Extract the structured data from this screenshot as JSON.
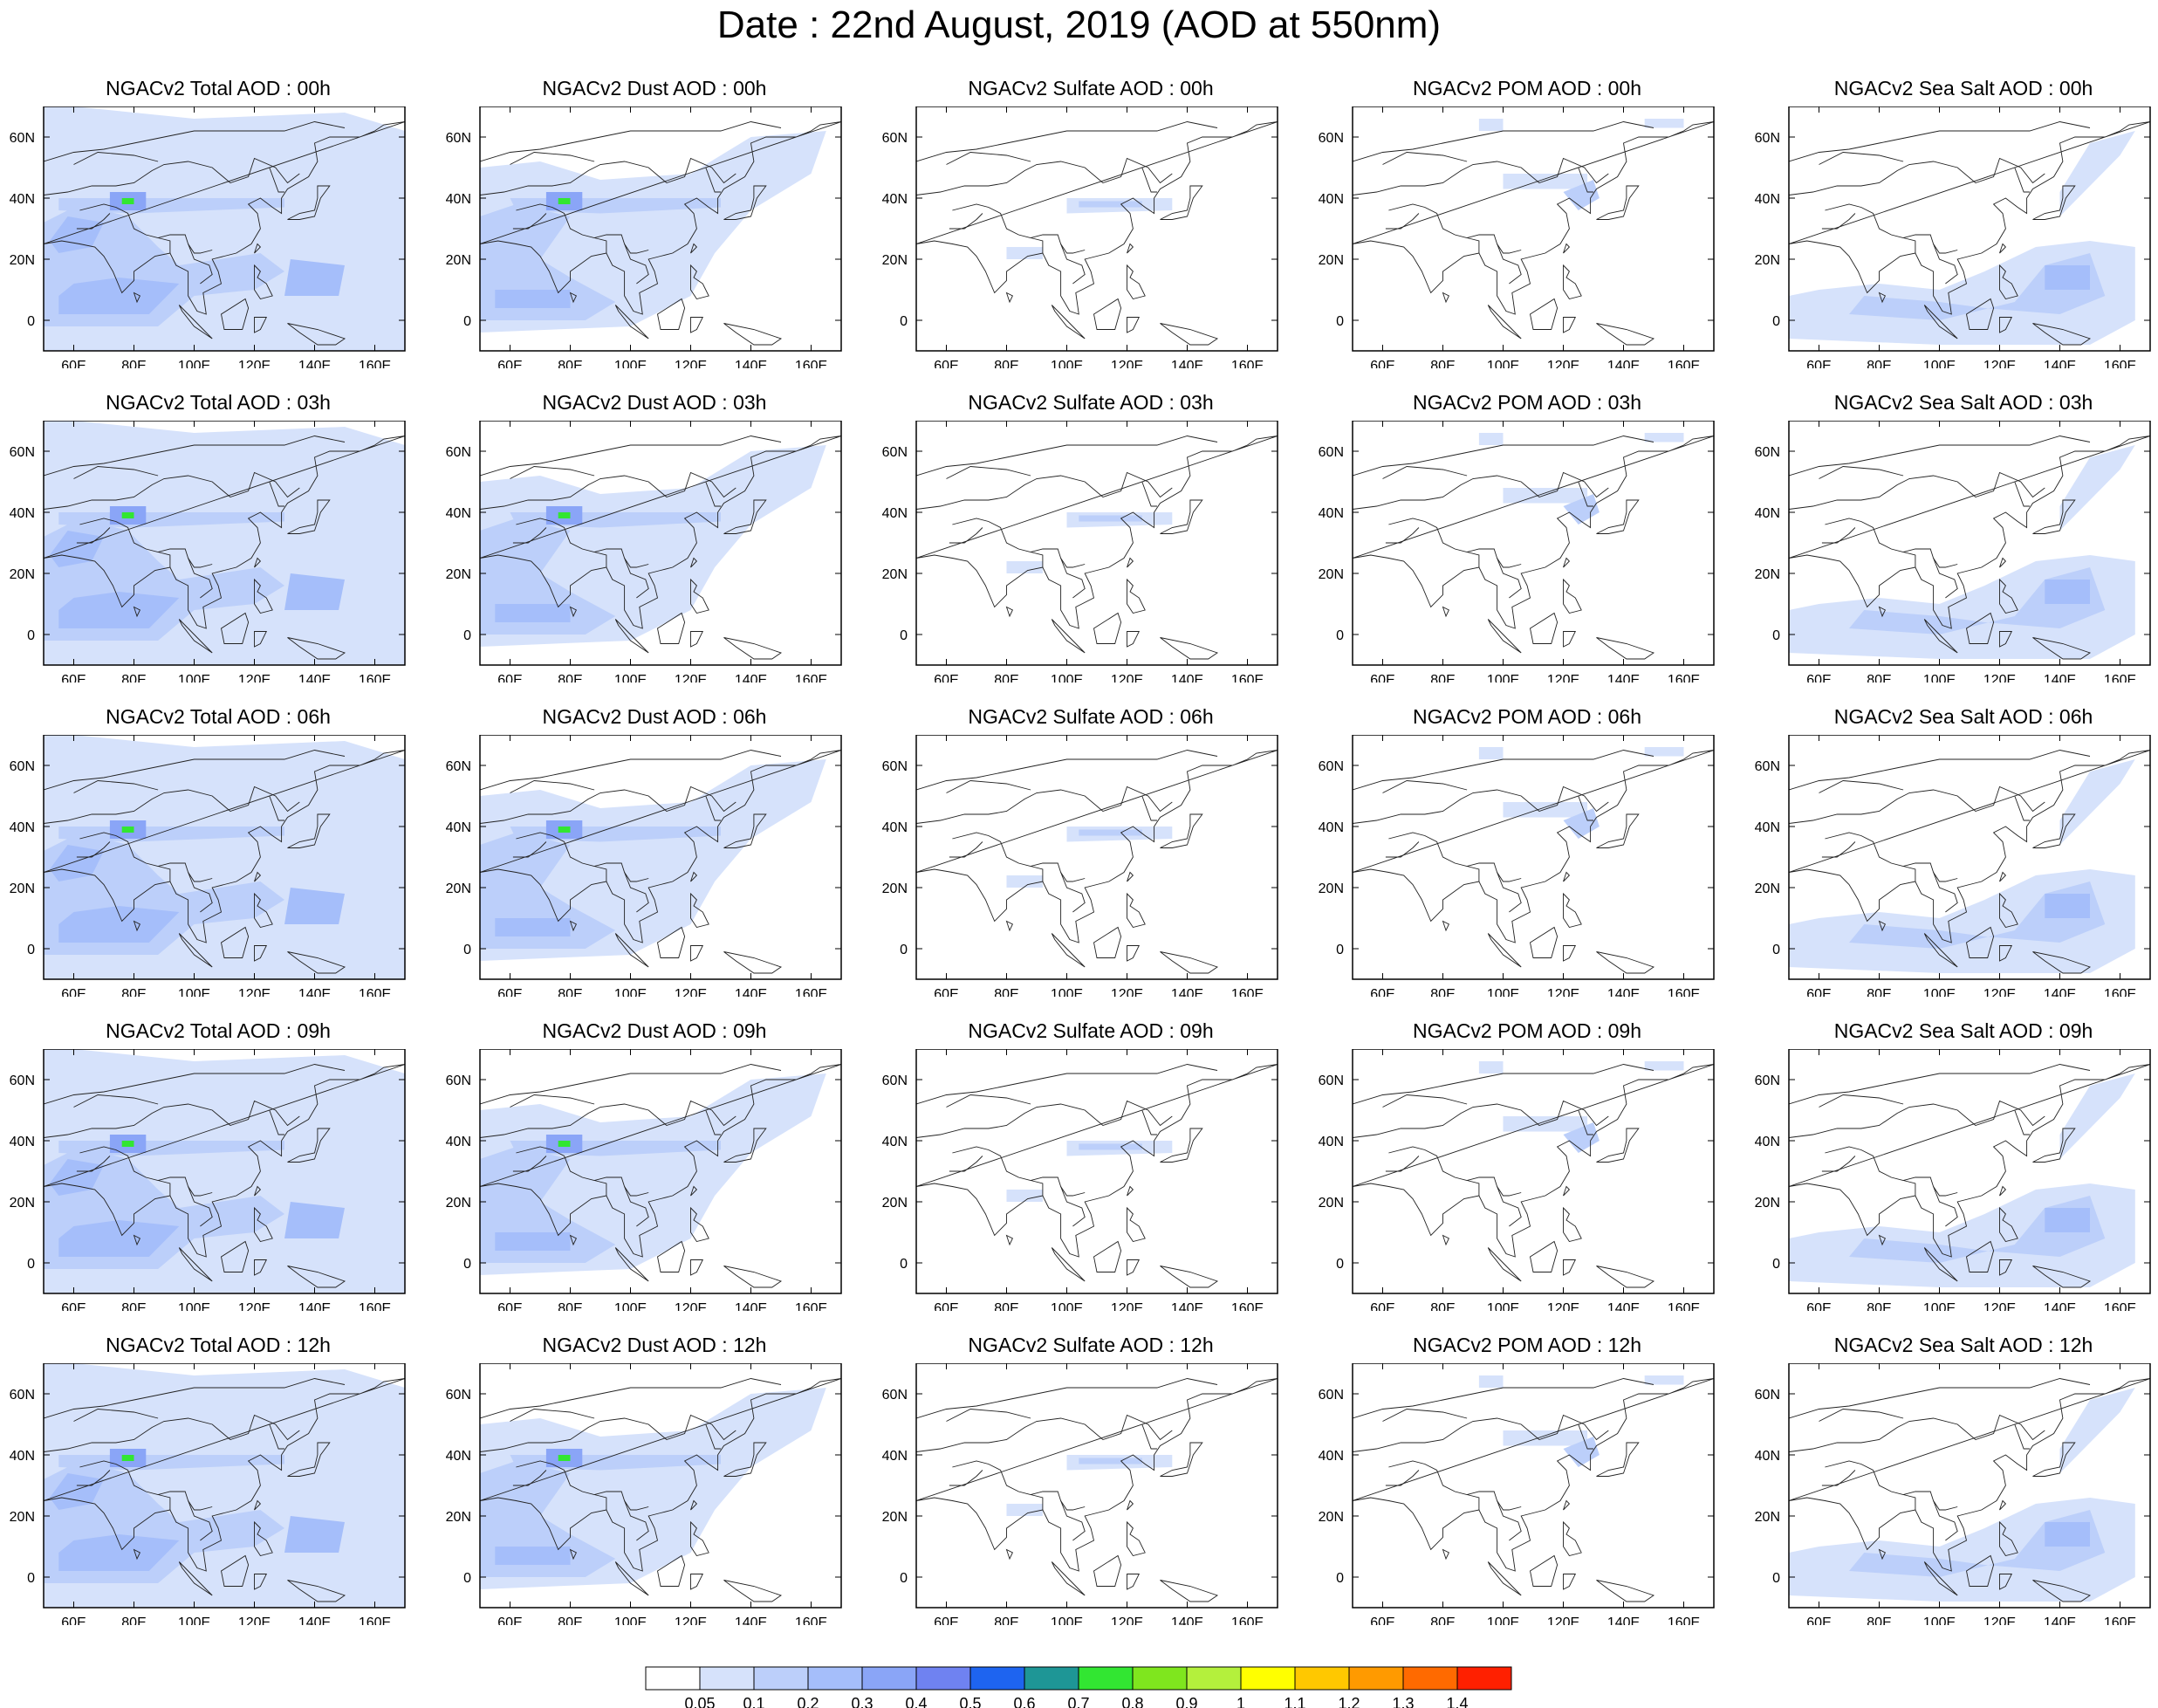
{
  "title": "Date : 22nd August, 2019 (AOD at 550nm)",
  "axes": {
    "x_ticks": [
      "60E",
      "80E",
      "100E",
      "120E",
      "140E",
      "160E"
    ],
    "y_ticks": [
      "60N",
      "40N",
      "20N",
      "0"
    ]
  },
  "panels": [
    {
      "title": "NGACv2 Total AOD : 00h",
      "species": "total",
      "hour": "00h"
    },
    {
      "title": "NGACv2 Dust AOD : 00h",
      "species": "dust",
      "hour": "00h"
    },
    {
      "title": "NGACv2 Sulfate AOD : 00h",
      "species": "sulfate",
      "hour": "00h"
    },
    {
      "title": "NGACv2 POM AOD : 00h",
      "species": "pom",
      "hour": "00h"
    },
    {
      "title": "NGACv2 Sea Salt AOD : 00h",
      "species": "seasalt",
      "hour": "00h"
    },
    {
      "title": "NGACv2 Total AOD : 03h",
      "species": "total",
      "hour": "03h"
    },
    {
      "title": "NGACv2 Dust AOD : 03h",
      "species": "dust",
      "hour": "03h"
    },
    {
      "title": "NGACv2 Sulfate AOD : 03h",
      "species": "sulfate",
      "hour": "03h"
    },
    {
      "title": "NGACv2 POM AOD : 03h",
      "species": "pom",
      "hour": "03h"
    },
    {
      "title": "NGACv2 Sea Salt AOD : 03h",
      "species": "seasalt",
      "hour": "03h"
    },
    {
      "title": "NGACv2 Total AOD : 06h",
      "species": "total",
      "hour": "06h"
    },
    {
      "title": "NGACv2 Dust AOD : 06h",
      "species": "dust",
      "hour": "06h"
    },
    {
      "title": "NGACv2 Sulfate AOD : 06h",
      "species": "sulfate",
      "hour": "06h"
    },
    {
      "title": "NGACv2 POM AOD : 06h",
      "species": "pom",
      "hour": "06h"
    },
    {
      "title": "NGACv2 Sea Salt AOD : 06h",
      "species": "seasalt",
      "hour": "06h"
    },
    {
      "title": "NGACv2 Total AOD : 09h",
      "species": "total",
      "hour": "09h"
    },
    {
      "title": "NGACv2 Dust AOD : 09h",
      "species": "dust",
      "hour": "09h"
    },
    {
      "title": "NGACv2 Sulfate AOD : 09h",
      "species": "sulfate",
      "hour": "09h"
    },
    {
      "title": "NGACv2 POM AOD : 09h",
      "species": "pom",
      "hour": "09h"
    },
    {
      "title": "NGACv2 Sea Salt  AOD : 09h",
      "species": "seasalt",
      "hour": "09h"
    },
    {
      "title": "NGACv2 Total AOD  : 12h",
      "species": "total",
      "hour": "12h"
    },
    {
      "title": "NGACv2 Dust AOD : 12h",
      "species": "dust",
      "hour": "12h"
    },
    {
      "title": "NGACv2 Sulfate AOD : 12h",
      "species": "sulfate",
      "hour": "12h"
    },
    {
      "title": "NGACv2 POM  AOD : 12h",
      "species": "pom",
      "hour": "12h"
    },
    {
      "title": "NGACv2 Sea Salt  AOD : 12h",
      "species": "seasalt",
      "hour": "12h"
    }
  ],
  "colorbar": {
    "labels": [
      "0.05",
      "0.1",
      "0.2",
      "0.3",
      "0.4",
      "0.5",
      "0.6",
      "0.7",
      "0.8",
      "0.9",
      "1",
      "1.1",
      "1.2",
      "1.3",
      "1.4"
    ],
    "colors": [
      "#ffffff",
      "#d6e2fb",
      "#bccffa",
      "#a5befa",
      "#8aa5f7",
      "#6f82f1",
      "#1e64f0",
      "#1e9696",
      "#32e632",
      "#7fe61e",
      "#b4f03c",
      "#ffff00",
      "#ffc800",
      "#ff9a00",
      "#ff6a00",
      "#ff2000"
    ]
  }
}
